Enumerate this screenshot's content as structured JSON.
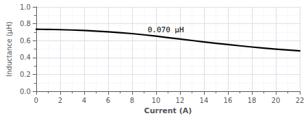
{
  "chart_data": {
    "type": "line",
    "xlabel": "Current (A)",
    "ylabel": "Inductance (μH)",
    "x": [
      0,
      0.5,
      1,
      1.5,
      2,
      3,
      4,
      5,
      6,
      7,
      8,
      9,
      10,
      11,
      12,
      13,
      14,
      15,
      16,
      17,
      18,
      19,
      20,
      21,
      22
    ],
    "values": [
      0.735,
      0.734,
      0.733,
      0.732,
      0.73,
      0.726,
      0.72,
      0.713,
      0.705,
      0.695,
      0.683,
      0.669,
      0.653,
      0.636,
      0.619,
      0.602,
      0.585,
      0.569,
      0.554,
      0.539,
      0.525,
      0.512,
      0.5,
      0.489,
      0.479
    ],
    "color": "#000000",
    "xlim": [
      0,
      22
    ],
    "ylim": [
      0,
      1.0
    ],
    "xticks": [
      0,
      2,
      4,
      6,
      8,
      10,
      12,
      14,
      16,
      18,
      20,
      22
    ],
    "yticks": [
      {
        "value": 0,
        "label": "0.0"
      },
      0.2,
      0.4,
      0.6,
      0.8,
      {
        "value": 1.0,
        "label": "1.0"
      }
    ],
    "grid": true,
    "annotations": [
      {
        "text": "0.070 μH",
        "x": 9.3,
        "y": 0.685
      }
    ]
  }
}
